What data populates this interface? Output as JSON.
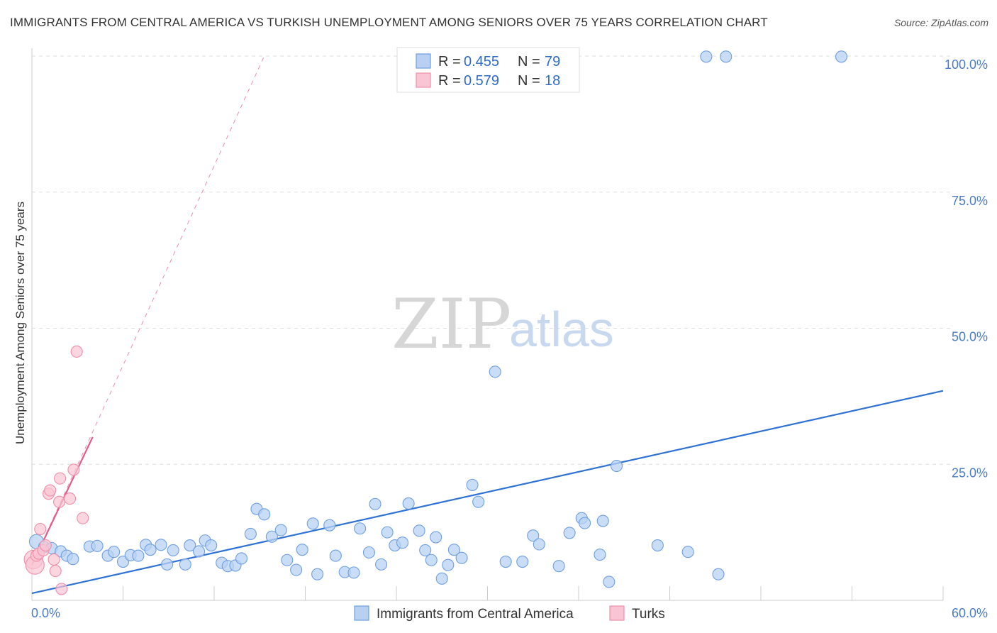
{
  "title": "IMMIGRANTS FROM CENTRAL AMERICA VS TURKISH UNEMPLOYMENT AMONG SENIORS OVER 75 YEARS CORRELATION CHART",
  "source": "Source: ZipAtlas.com",
  "watermark": {
    "zip": "ZIP",
    "atlas": "atlas"
  },
  "colors": {
    "blue_fill": "#b8d1f3",
    "blue_stroke": "#6f9fe0",
    "blue_line": "#2f72d6",
    "pink_fill": "#f9c4d3",
    "pink_stroke": "#ee8faa",
    "pink_line": "#e45c8a",
    "grid": "#dddddd",
    "tick_text": "#4a7cc9"
  },
  "legend": {
    "r_label": "R =",
    "n_label": "N =",
    "series": [
      {
        "r": "0.455",
        "n": "79"
      },
      {
        "r": "0.579",
        "n": "18"
      }
    ]
  },
  "chart_data": {
    "type": "scatter",
    "xlabel": "",
    "ylabel": "Unemployment Among Seniors over 75 years",
    "xlim": [
      0,
      60
    ],
    "ylim": [
      0,
      105
    ],
    "x_tick_labels": [
      "0.0%",
      "60.0%"
    ],
    "y_ticks": [
      25,
      50,
      75,
      100
    ],
    "y_tick_labels": [
      "25.0%",
      "50.0%",
      "75.0%",
      "100.0%"
    ],
    "grid": true,
    "series": [
      {
        "name": "Immigrants from Central America",
        "color": "blue",
        "trend": {
          "x1": 0,
          "y1": 1.3,
          "x2": 60,
          "y2": 38.5
        },
        "points": [
          [
            0.3,
            10.8
          ],
          [
            0.8,
            9.8
          ],
          [
            1.3,
            9.6
          ],
          [
            1.9,
            9.0
          ],
          [
            2.3,
            8.2
          ],
          [
            2.7,
            7.6
          ],
          [
            3.8,
            9.9
          ],
          [
            4.3,
            10.0
          ],
          [
            5.0,
            8.2
          ],
          [
            5.4,
            8.9
          ],
          [
            6.0,
            7.1
          ],
          [
            6.5,
            8.3
          ],
          [
            7.0,
            8.2
          ],
          [
            7.5,
            10.2
          ],
          [
            7.8,
            9.3
          ],
          [
            8.5,
            10.2
          ],
          [
            8.9,
            6.6
          ],
          [
            9.3,
            9.2
          ],
          [
            10.1,
            6.6
          ],
          [
            10.4,
            10.1
          ],
          [
            11.0,
            9.0
          ],
          [
            11.4,
            11.0
          ],
          [
            11.8,
            10.1
          ],
          [
            12.5,
            6.9
          ],
          [
            12.9,
            6.3
          ],
          [
            13.4,
            6.4
          ],
          [
            13.8,
            7.7
          ],
          [
            14.4,
            12.2
          ],
          [
            14.8,
            16.8
          ],
          [
            15.3,
            15.8
          ],
          [
            15.8,
            11.7
          ],
          [
            16.4,
            12.9
          ],
          [
            16.8,
            7.4
          ],
          [
            17.4,
            5.6
          ],
          [
            17.8,
            9.3
          ],
          [
            18.5,
            14.1
          ],
          [
            18.8,
            4.8
          ],
          [
            19.6,
            13.8
          ],
          [
            20.0,
            8.2
          ],
          [
            20.6,
            5.2
          ],
          [
            21.2,
            5.1
          ],
          [
            21.6,
            13.2
          ],
          [
            22.2,
            8.8
          ],
          [
            22.6,
            17.7
          ],
          [
            23.0,
            6.6
          ],
          [
            23.4,
            12.5
          ],
          [
            23.9,
            10.1
          ],
          [
            24.4,
            10.6
          ],
          [
            24.8,
            17.8
          ],
          [
            25.5,
            12.8
          ],
          [
            25.9,
            9.2
          ],
          [
            26.3,
            7.4
          ],
          [
            26.6,
            11.6
          ],
          [
            27.0,
            4.0
          ],
          [
            27.4,
            6.5
          ],
          [
            27.8,
            9.3
          ],
          [
            28.3,
            7.8
          ],
          [
            29.0,
            21.2
          ],
          [
            29.4,
            18.1
          ],
          [
            30.5,
            42.0
          ],
          [
            31.2,
            7.1
          ],
          [
            32.3,
            7.1
          ],
          [
            33.0,
            11.9
          ],
          [
            33.4,
            10.3
          ],
          [
            34.7,
            6.3
          ],
          [
            35.4,
            12.4
          ],
          [
            36.2,
            15.1
          ],
          [
            36.4,
            14.2
          ],
          [
            37.4,
            8.4
          ],
          [
            37.6,
            14.6
          ],
          [
            38.0,
            3.4
          ],
          [
            38.5,
            24.7
          ],
          [
            41.2,
            10.1
          ],
          [
            43.2,
            8.9
          ],
          [
            44.4,
            99.9
          ],
          [
            45.2,
            4.8
          ],
          [
            45.7,
            99.9
          ],
          [
            53.3,
            99.9
          ]
        ]
      },
      {
        "name": "Turks",
        "color": "pink",
        "trend": {
          "x1": 0,
          "y1": 6.5,
          "x2": 4.0,
          "y2": 30.0
        },
        "trend_ext": {
          "x1": 0,
          "y1": 6.5,
          "x2": 15.3,
          "y2": 100.0
        },
        "points": [
          [
            0.1,
            7.5
          ],
          [
            0.2,
            6.5
          ],
          [
            0.3,
            8.2
          ],
          [
            0.45,
            8.6
          ],
          [
            0.55,
            13.1
          ],
          [
            0.75,
            9.2
          ],
          [
            0.9,
            10.1
          ],
          [
            1.1,
            19.6
          ],
          [
            1.2,
            20.2
          ],
          [
            1.45,
            7.5
          ],
          [
            1.55,
            5.4
          ],
          [
            1.8,
            18.1
          ],
          [
            1.85,
            22.4
          ],
          [
            1.95,
            2.1
          ],
          [
            2.5,
            18.7
          ],
          [
            2.75,
            24.0
          ],
          [
            2.95,
            45.7
          ],
          [
            3.35,
            15.1
          ]
        ]
      }
    ]
  },
  "bottom_legend": [
    {
      "label": "Immigrants from Central America",
      "color": "blue"
    },
    {
      "label": "Turks",
      "color": "pink"
    }
  ]
}
